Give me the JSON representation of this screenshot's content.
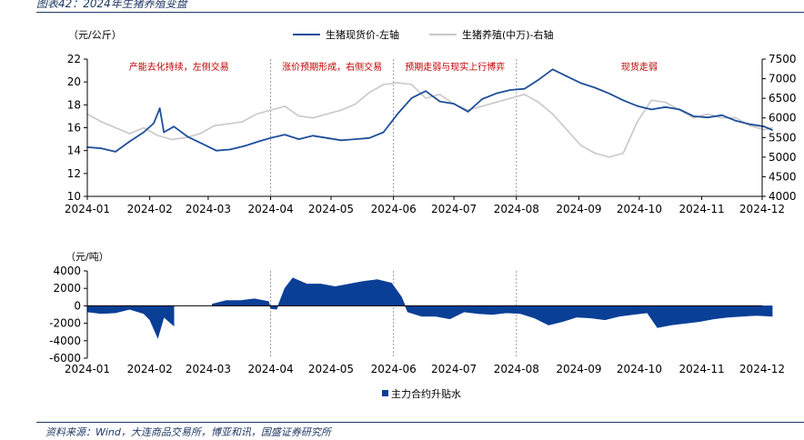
{
  "header": {
    "title": "图表42：2024年生猪养殖变盘"
  },
  "footer": {
    "source": "资料来源：Wind，大连商品交易所，博亚和讯，国盛证券研究所"
  },
  "colors": {
    "price": "#1f4e9a",
    "inventory": "#c8c8c8",
    "basis": "#0a3f96",
    "annotation": "#c00000",
    "divider": "#9a9a9a"
  },
  "chart_data": [
    {
      "type": "line",
      "unit_left": "（元/公斤）",
      "x_ticks": [
        "2024-01",
        "2024-02",
        "2024-03",
        "2024-04",
        "2024-05",
        "2024-06",
        "2024-07",
        "2024-08",
        "2024-09",
        "2024-10",
        "2024-11",
        "2024-12"
      ],
      "ylim_left": [
        10,
        22
      ],
      "yticks_left": [
        10,
        12,
        14,
        16,
        18,
        20,
        22
      ],
      "ylim_right": [
        4000,
        7500
      ],
      "yticks_right": [
        4000,
        4500,
        5000,
        5500,
        6000,
        6500,
        7000,
        7500
      ],
      "grid": false,
      "legend_position": "top",
      "dividers": [
        "2024-04",
        "2024-06",
        "2024-08"
      ],
      "annotations": [
        "产能去化持续，左侧交易",
        "涨价预期形成，右侧交易",
        "预期走弱与现实上行博弈",
        "现货走弱"
      ],
      "series": [
        {
          "name": "生猪现货价-左轴",
          "axis": "left",
          "points": [
            [
              "2024-01-01",
              14.3
            ],
            [
              "2024-01-08",
              14.2
            ],
            [
              "2024-01-15",
              13.9
            ],
            [
              "2024-01-22",
              14.8
            ],
            [
              "2024-01-29",
              15.6
            ],
            [
              "2024-02-03",
              16.4
            ],
            [
              "2024-02-06",
              17.7
            ],
            [
              "2024-02-08",
              15.6
            ],
            [
              "2024-02-13",
              16.1
            ],
            [
              "2024-02-20",
              15.2
            ],
            [
              "2024-02-27",
              14.6
            ],
            [
              "2024-03-05",
              14.0
            ],
            [
              "2024-03-12",
              14.1
            ],
            [
              "2024-03-19",
              14.4
            ],
            [
              "2024-03-26",
              14.8
            ],
            [
              "2024-04-01",
              15.1
            ],
            [
              "2024-04-08",
              15.4
            ],
            [
              "2024-04-15",
              15.0
            ],
            [
              "2024-04-22",
              15.3
            ],
            [
              "2024-04-29",
              15.1
            ],
            [
              "2024-05-06",
              14.9
            ],
            [
              "2024-05-13",
              15.0
            ],
            [
              "2024-05-20",
              15.1
            ],
            [
              "2024-05-27",
              15.6
            ],
            [
              "2024-06-03",
              17.2
            ],
            [
              "2024-06-10",
              18.6
            ],
            [
              "2024-06-17",
              19.2
            ],
            [
              "2024-06-24",
              18.3
            ],
            [
              "2024-07-01",
              18.1
            ],
            [
              "2024-07-08",
              17.4
            ],
            [
              "2024-07-15",
              18.5
            ],
            [
              "2024-07-22",
              19.0
            ],
            [
              "2024-07-29",
              19.3
            ],
            [
              "2024-08-05",
              19.4
            ],
            [
              "2024-08-12",
              20.2
            ],
            [
              "2024-08-19",
              21.1
            ],
            [
              "2024-08-26",
              20.5
            ],
            [
              "2024-09-02",
              19.9
            ],
            [
              "2024-09-09",
              19.5
            ],
            [
              "2024-09-16",
              19.0
            ],
            [
              "2024-09-23",
              18.4
            ],
            [
              "2024-09-30",
              17.9
            ],
            [
              "2024-10-07",
              17.6
            ],
            [
              "2024-10-14",
              17.8
            ],
            [
              "2024-10-21",
              17.6
            ],
            [
              "2024-10-28",
              17.0
            ],
            [
              "2024-11-04",
              16.9
            ],
            [
              "2024-11-11",
              17.1
            ],
            [
              "2024-11-18",
              16.6
            ],
            [
              "2024-11-25",
              16.3
            ],
            [
              "2024-12-02",
              16.1
            ],
            [
              "2024-12-06",
              15.8
            ]
          ]
        },
        {
          "name": "生猪养殖(中万)-右轴",
          "axis": "right",
          "points": [
            [
              "2024-01-01",
              6100
            ],
            [
              "2024-01-08",
              5900
            ],
            [
              "2024-01-15",
              5750
            ],
            [
              "2024-01-22",
              5600
            ],
            [
              "2024-01-29",
              5750
            ],
            [
              "2024-02-05",
              5550
            ],
            [
              "2024-02-12",
              5450
            ],
            [
              "2024-02-19",
              5500
            ],
            [
              "2024-02-26",
              5600
            ],
            [
              "2024-03-04",
              5800
            ],
            [
              "2024-03-11",
              5850
            ],
            [
              "2024-03-18",
              5900
            ],
            [
              "2024-03-25",
              6100
            ],
            [
              "2024-04-01",
              6200
            ],
            [
              "2024-04-08",
              6300
            ],
            [
              "2024-04-15",
              6050
            ],
            [
              "2024-04-22",
              6000
            ],
            [
              "2024-04-29",
              6100
            ],
            [
              "2024-05-06",
              6200
            ],
            [
              "2024-05-13",
              6350
            ],
            [
              "2024-05-20",
              6650
            ],
            [
              "2024-05-27",
              6850
            ],
            [
              "2024-06-03",
              6900
            ],
            [
              "2024-06-10",
              6850
            ],
            [
              "2024-06-17",
              6500
            ],
            [
              "2024-06-24",
              6600
            ],
            [
              "2024-07-01",
              6350
            ],
            [
              "2024-07-08",
              6200
            ],
            [
              "2024-07-15",
              6300
            ],
            [
              "2024-07-22",
              6400
            ],
            [
              "2024-07-29",
              6500
            ],
            [
              "2024-08-05",
              6600
            ],
            [
              "2024-08-12",
              6400
            ],
            [
              "2024-08-19",
              6100
            ],
            [
              "2024-08-26",
              5700
            ],
            [
              "2024-09-02",
              5300
            ],
            [
              "2024-09-09",
              5100
            ],
            [
              "2024-09-16",
              5000
            ],
            [
              "2024-09-23",
              5100
            ],
            [
              "2024-09-30",
              5900
            ],
            [
              "2024-10-07",
              6450
            ],
            [
              "2024-10-14",
              6400
            ],
            [
              "2024-10-21",
              6200
            ],
            [
              "2024-10-28",
              6000
            ],
            [
              "2024-11-04",
              6100
            ],
            [
              "2024-11-11",
              6000
            ],
            [
              "2024-11-18",
              6000
            ],
            [
              "2024-11-25",
              5800
            ],
            [
              "2024-12-02",
              5700
            ],
            [
              "2024-12-06",
              5750
            ]
          ]
        }
      ]
    },
    {
      "type": "area",
      "unit_left": "（元/吨）",
      "x_ticks": [
        "2024-01",
        "2024-02",
        "2024-03",
        "2024-04",
        "2024-05",
        "2024-06",
        "2024-07",
        "2024-08",
        "2024-09",
        "2024-10",
        "2024-11",
        "2024-12"
      ],
      "ylim": [
        -6000,
        4000
      ],
      "yticks": [
        -6000,
        -4000,
        -2000,
        0,
        2000,
        4000
      ],
      "grid": false,
      "legend_position": "bottom",
      "dividers": [
        "2024-04",
        "2024-06",
        "2024-08"
      ],
      "series": [
        {
          "name": "主力合约升贴水",
          "points": [
            [
              "2024-01-01",
              -700
            ],
            [
              "2024-01-08",
              -900
            ],
            [
              "2024-01-15",
              -800
            ],
            [
              "2024-01-22",
              -400
            ],
            [
              "2024-01-29",
              -900
            ],
            [
              "2024-02-01",
              -1600
            ],
            [
              "2024-02-05",
              -3700
            ],
            [
              "2024-02-08",
              -1300
            ],
            [
              "2024-02-13",
              -2300
            ],
            [
              "2024-02-16",
              null
            ],
            [
              "2024-03-01",
              null
            ],
            [
              "2024-03-03",
              200
            ],
            [
              "2024-03-10",
              600
            ],
            [
              "2024-03-17",
              600
            ],
            [
              "2024-03-24",
              800
            ],
            [
              "2024-03-31",
              500
            ],
            [
              "2024-04-01",
              -300
            ],
            [
              "2024-04-04",
              -400
            ],
            [
              "2024-04-08",
              2000
            ],
            [
              "2024-04-12",
              3200
            ],
            [
              "2024-04-19",
              2500
            ],
            [
              "2024-04-26",
              2500
            ],
            [
              "2024-05-03",
              2200
            ],
            [
              "2024-05-10",
              2500
            ],
            [
              "2024-05-17",
              2800
            ],
            [
              "2024-05-24",
              3000
            ],
            [
              "2024-05-31",
              2600
            ],
            [
              "2024-06-05",
              1000
            ],
            [
              "2024-06-08",
              -700
            ],
            [
              "2024-06-15",
              -1200
            ],
            [
              "2024-06-22",
              -1200
            ],
            [
              "2024-06-29",
              -1500
            ],
            [
              "2024-07-06",
              -700
            ],
            [
              "2024-07-13",
              -900
            ],
            [
              "2024-07-20",
              -1000
            ],
            [
              "2024-07-27",
              -800
            ],
            [
              "2024-08-03",
              -900
            ],
            [
              "2024-08-10",
              -1400
            ],
            [
              "2024-08-17",
              -2200
            ],
            [
              "2024-08-24",
              -1800
            ],
            [
              "2024-08-31",
              -1300
            ],
            [
              "2024-09-07",
              -1400
            ],
            [
              "2024-09-14",
              -1600
            ],
            [
              "2024-09-21",
              -1200
            ],
            [
              "2024-09-28",
              -1000
            ],
            [
              "2024-10-05",
              -800
            ],
            [
              "2024-10-10",
              -2500
            ],
            [
              "2024-10-17",
              -2200
            ],
            [
              "2024-10-24",
              -2000
            ],
            [
              "2024-10-31",
              -1800
            ],
            [
              "2024-11-07",
              -1500
            ],
            [
              "2024-11-14",
              -1300
            ],
            [
              "2024-11-21",
              -1200
            ],
            [
              "2024-11-28",
              -1100
            ],
            [
              "2024-12-06",
              -1200
            ]
          ]
        }
      ]
    }
  ]
}
